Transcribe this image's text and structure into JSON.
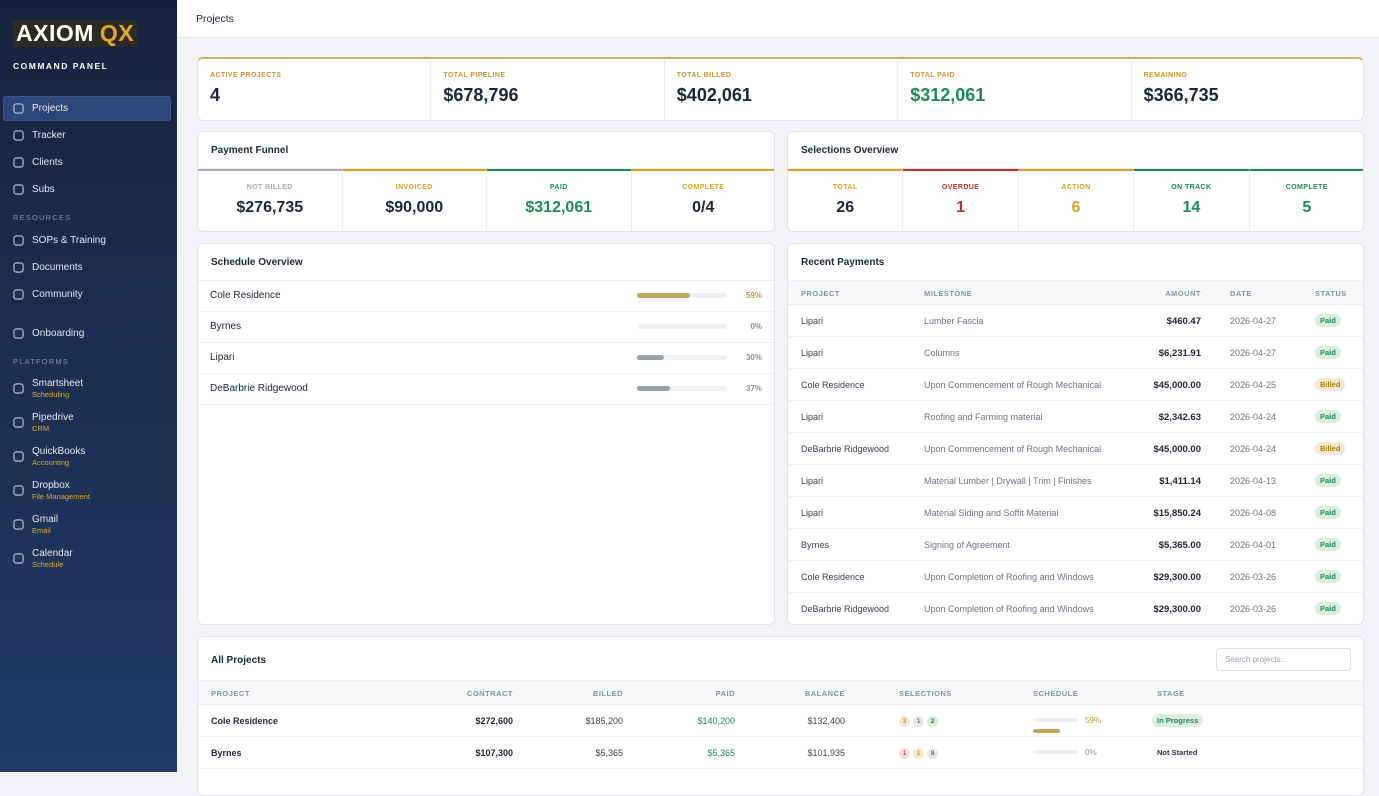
{
  "sidebar": {
    "logo": {
      "word": "AXIOM",
      "mark": "QX"
    },
    "subtitle": "COMMAND PANEL",
    "groups": [
      {
        "items": [
          {
            "label": "Projects"
          },
          {
            "label": "Tracker"
          },
          {
            "label": "Clients"
          },
          {
            "label": "Subs"
          }
        ]
      },
      {
        "label": "RESOURCES",
        "items": [
          {
            "label": "SOPs & Training"
          },
          {
            "label": "Documents"
          },
          {
            "label": "Community"
          }
        ]
      },
      {
        "items": [
          {
            "label": "Onboarding"
          }
        ]
      },
      {
        "label": "PLATFORMS",
        "items": [
          {
            "label": "Smartsheet",
            "sub": "Scheduling"
          },
          {
            "label": "Pipedrive",
            "sub": "CRM"
          },
          {
            "label": "QuickBooks",
            "sub": "Accounting"
          },
          {
            "label": "Dropbox",
            "sub": "File Management"
          },
          {
            "label": "Gmail",
            "sub": "Email"
          },
          {
            "label": "Calendar",
            "sub": "Schedule"
          }
        ]
      }
    ]
  },
  "header": {
    "title": "Projects"
  },
  "stats": [
    {
      "label": "ACTIVE PROJECTS",
      "value": "4",
      "color": "#1d2433"
    },
    {
      "label": "TOTAL PIPELINE",
      "value": "$678,796",
      "color": "#1d2433"
    },
    {
      "label": "TOTAL BILLED",
      "value": "$402,061",
      "color": "#1d2433"
    },
    {
      "label": "TOTAL PAID",
      "value": "$312,061",
      "color": "#1a8a5a"
    },
    {
      "label": "REMAINING",
      "value": "$366,735",
      "color": "#1d2433"
    }
  ],
  "payment_funnel": {
    "title": "Payment Funnel",
    "items": [
      {
        "label": "NOT BILLED",
        "value": "$276,735",
        "color": "#a9acb3",
        "value_color": "#1d2433"
      },
      {
        "label": "INVOICED",
        "value": "$90,000",
        "color": "#d9a21e",
        "value_color": "#1d2433"
      },
      {
        "label": "PAID",
        "value": "$312,061",
        "color": "#1a8a5a",
        "value_color": "#1a8a5a"
      },
      {
        "label": "COMPLETE",
        "value": "0/4",
        "color": "#d9a21e",
        "value_color": "#1d2433"
      }
    ]
  },
  "selections_overview": {
    "title": "Selections Overview",
    "items": [
      {
        "label": "TOTAL",
        "value": "26",
        "color": "#d9a21e",
        "value_color": "#1d2433"
      },
      {
        "label": "OVERDUE",
        "value": "1",
        "color": "#c62828",
        "value_color": "#c62828"
      },
      {
        "label": "ACTION",
        "value": "6",
        "color": "#d9a21e",
        "value_color": "#e0a020"
      },
      {
        "label": "ON TRACK",
        "value": "14",
        "color": "#1a8a5a",
        "value_color": "#1a8a5a"
      },
      {
        "label": "COMPLETE",
        "value": "5",
        "color": "#1a8a5a",
        "value_color": "#1a8a5a"
      }
    ]
  },
  "schedule_overview": {
    "title": "Schedule Overview",
    "rows": [
      {
        "name": "Cole Residence",
        "progress": {
          "value": 59,
          "label": "59%"
        },
        "color": "#c4a55c"
      },
      {
        "name": "Byrnes",
        "progress": {
          "value": 0,
          "label": "0%"
        },
        "color": "#9aa0a8"
      },
      {
        "name": "Lipari",
        "progress": {
          "value": 30,
          "label": "30%"
        },
        "color": "#9aa0a8"
      },
      {
        "name": "DeBarbrie Ridgewood",
        "progress": {
          "value": 37,
          "label": "37%"
        },
        "color": "#9aa0a8"
      }
    ]
  },
  "recent_payments": {
    "title": "Recent Payments",
    "columns": [
      "PROJECT",
      "MILESTONE",
      "AMOUNT",
      "DATE",
      "STATUS"
    ],
    "rows": [
      {
        "project": "Lipari",
        "milestone": "Lumber Fascia",
        "amount": "$460.47",
        "date": "2026-04-27",
        "status": "Paid",
        "status_color": "#1a8a4a"
      },
      {
        "project": "Lipari",
        "milestone": "Columns",
        "amount": "$6,231.91",
        "date": "2026-04-27",
        "status": "Paid",
        "status_color": "#1a8a4a"
      },
      {
        "project": "Cole Residence",
        "milestone": "Upon Commencement of Rough Mechanical",
        "amount": "$45,000.00",
        "date": "2026-04-25",
        "status": "Billed",
        "status_color": "#b07a00"
      },
      {
        "project": "Lipari",
        "milestone": "Roofing and Farming material",
        "amount": "$2,342.63",
        "date": "2026-04-24",
        "status": "Paid",
        "status_color": "#1a8a4a"
      },
      {
        "project": "DeBarbrie Ridgewood",
        "milestone": "Upon Commencement of Rough Mechanical",
        "amount": "$45,000.00",
        "date": "2026-04-24",
        "status": "Billed",
        "status_color": "#b07a00"
      },
      {
        "project": "Lipari",
        "milestone": "Material Lumber | Drywall | Trim | Finishes",
        "amount": "$1,411.14",
        "date": "2026-04-13",
        "status": "Paid",
        "status_color": "#1a8a4a"
      },
      {
        "project": "Lipari",
        "milestone": "Material Siding and Soffit Material",
        "amount": "$15,850.24",
        "date": "2026-04-08",
        "status": "Paid",
        "status_color": "#1a8a4a"
      },
      {
        "project": "Byrnes",
        "milestone": "Signing of Agreement",
        "amount": "$5,365.00",
        "date": "2026-04-01",
        "status": "Paid",
        "status_color": "#1a8a4a"
      },
      {
        "project": "Cole Residence",
        "milestone": "Upon Completion of Roofing and Windows",
        "amount": "$29,300.00",
        "date": "2026-03-26",
        "status": "Paid",
        "status_color": "#1a8a4a"
      },
      {
        "project": "DeBarbrie Ridgewood",
        "milestone": "Upon Completion of Roofing and Windows",
        "amount": "$29,300.00",
        "date": "2026-03-26",
        "status": "Paid",
        "status_color": "#1a8a4a"
      }
    ]
  },
  "all_projects": {
    "title": "All Projects",
    "search_placeholder": "Search projects...",
    "columns": [
      "PROJECT",
      "CONTRACT",
      "BILLED",
      "PAID",
      "BALANCE",
      "SELECTIONS",
      "SCHEDULE",
      "STAGE"
    ],
    "rows": [
      {
        "project": "Cole Residence",
        "contract": "$272,600",
        "billed": "$185,200",
        "paid": "$140,200",
        "balance": "$132,400",
        "selections": [
          {
            "count": "3",
            "color": "#c98a00"
          },
          {
            "count": "1",
            "color": "#6b7280"
          },
          {
            "count": "2",
            "color": "#1a8a4a"
          }
        ],
        "schedule": {
          "value": 59,
          "label": "59%"
        },
        "schedule_color": "#c4a55c",
        "stage": "In Progress",
        "stage_color": "#1a8a4a"
      },
      {
        "project": "Byrnes",
        "contract": "$107,300",
        "billed": "$5,365",
        "paid": "$5,365",
        "balance": "$101,935",
        "selections": [
          {
            "count": "1",
            "color": "#d04040"
          },
          {
            "count": "1",
            "color": "#c98a00"
          },
          {
            "count": "8",
            "color": "#6b7280"
          }
        ],
        "schedule": {
          "value": 0,
          "label": "0%"
        },
        "schedule_color": "#9aa0a8",
        "stage": "Not Started",
        "stage_color": "#2a3140"
      }
    ]
  }
}
